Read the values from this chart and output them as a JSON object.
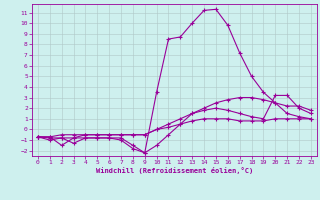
{
  "xlabel": "Windchill (Refroidissement éolien,°C)",
  "bg_color": "#cef0ee",
  "grid_color": "#b0c8c8",
  "line_color": "#990099",
  "xlim": [
    -0.5,
    23.5
  ],
  "ylim": [
    -2.5,
    11.8
  ],
  "xticks": [
    0,
    1,
    2,
    3,
    4,
    5,
    6,
    7,
    8,
    9,
    10,
    11,
    12,
    13,
    14,
    15,
    16,
    17,
    18,
    19,
    20,
    21,
    22,
    23
  ],
  "yticks": [
    -2,
    -1,
    0,
    1,
    2,
    3,
    4,
    5,
    6,
    7,
    8,
    9,
    10,
    11
  ],
  "line1_x": [
    0,
    1,
    2,
    3,
    4,
    5,
    6,
    7,
    8,
    9,
    10,
    11,
    12,
    13,
    14,
    15,
    16,
    17,
    18,
    19,
    20,
    21,
    22,
    23
  ],
  "line1_y": [
    -0.7,
    -1.0,
    -0.8,
    -1.3,
    -0.8,
    -0.8,
    -0.8,
    -1.0,
    -1.8,
    -2.2,
    3.5,
    8.5,
    8.7,
    10.0,
    11.2,
    11.3,
    9.8,
    7.2,
    5.0,
    3.5,
    2.5,
    1.5,
    1.2,
    1.0
  ],
  "line2_x": [
    0,
    1,
    2,
    3,
    4,
    5,
    6,
    7,
    8,
    9,
    10,
    11,
    12,
    13,
    14,
    15,
    16,
    17,
    18,
    19,
    20,
    21,
    22,
    23
  ],
  "line2_y": [
    -0.7,
    -0.8,
    -0.8,
    -0.8,
    -0.8,
    -0.8,
    -0.8,
    -0.8,
    -1.5,
    -2.2,
    -1.5,
    -0.5,
    0.5,
    1.5,
    1.8,
    2.0,
    1.8,
    1.5,
    1.2,
    1.0,
    3.2,
    3.2,
    2.0,
    1.5
  ],
  "line3_x": [
    0,
    1,
    2,
    3,
    4,
    5,
    6,
    7,
    8,
    9,
    10,
    11,
    12,
    13,
    14,
    15,
    16,
    17,
    18,
    19,
    20,
    21,
    22,
    23
  ],
  "line3_y": [
    -0.7,
    -0.7,
    -1.5,
    -0.8,
    -0.5,
    -0.5,
    -0.5,
    -0.5,
    -0.5,
    -0.5,
    0.0,
    0.5,
    1.0,
    1.5,
    2.0,
    2.5,
    2.8,
    3.0,
    3.0,
    2.8,
    2.5,
    2.2,
    2.2,
    1.8
  ],
  "line4_x": [
    0,
    1,
    2,
    3,
    4,
    5,
    6,
    7,
    8,
    9,
    10,
    11,
    12,
    13,
    14,
    15,
    16,
    17,
    18,
    19,
    20,
    21,
    22,
    23
  ],
  "line4_y": [
    -0.7,
    -0.7,
    -0.5,
    -0.5,
    -0.5,
    -0.5,
    -0.5,
    -0.5,
    -0.5,
    -0.5,
    0.0,
    0.2,
    0.5,
    0.8,
    1.0,
    1.0,
    1.0,
    0.8,
    0.8,
    0.8,
    1.0,
    1.0,
    1.0,
    1.0
  ]
}
